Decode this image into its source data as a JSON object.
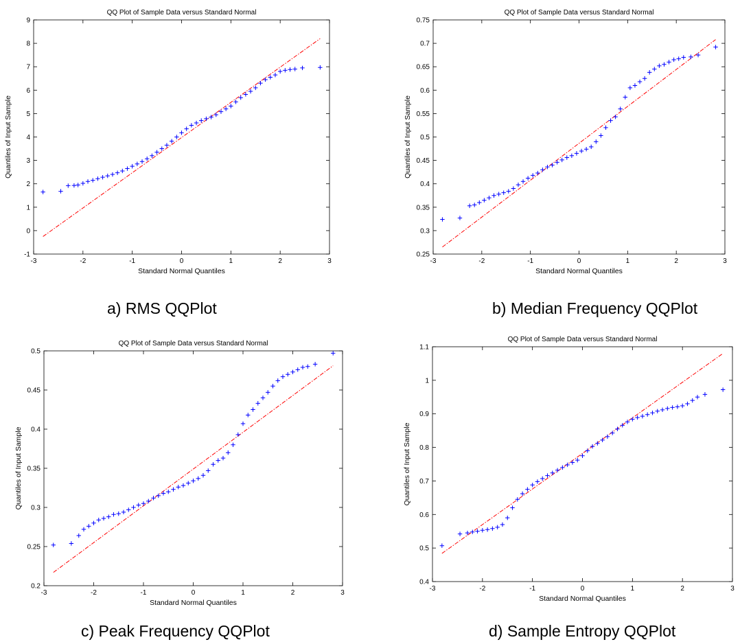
{
  "chart_data": [
    {
      "type": "scatter",
      "title": "QQ Plot of Sample Data versus Standard Normal",
      "xlabel": "Standard Normal Quantiles",
      "ylabel": "Quantiles of Input Sample",
      "caption": "a) RMS QQPlot",
      "xlim": [
        -3,
        3
      ],
      "ylim": [
        -1,
        9
      ],
      "xticks": [
        -3,
        -2,
        -1,
        0,
        1,
        2,
        3
      ],
      "yticks": [
        -1,
        0,
        1,
        2,
        3,
        4,
        5,
        6,
        7,
        8,
        9
      ],
      "marker_color": "#0000ff",
      "line_color": "#ff0000",
      "reference_line": [
        [
          -2.81,
          -0.25
        ],
        [
          2.81,
          8.2
        ]
      ],
      "points": [
        [
          -2.81,
          1.65
        ],
        [
          -2.45,
          1.68
        ],
        [
          -2.3,
          1.92
        ],
        [
          -2.18,
          1.93
        ],
        [
          -2.1,
          1.95
        ],
        [
          -2.0,
          2.02
        ],
        [
          -1.9,
          2.1
        ],
        [
          -1.8,
          2.15
        ],
        [
          -1.7,
          2.22
        ],
        [
          -1.6,
          2.28
        ],
        [
          -1.5,
          2.34
        ],
        [
          -1.4,
          2.4
        ],
        [
          -1.3,
          2.47
        ],
        [
          -1.2,
          2.55
        ],
        [
          -1.1,
          2.65
        ],
        [
          -1.0,
          2.75
        ],
        [
          -0.9,
          2.85
        ],
        [
          -0.8,
          2.95
        ],
        [
          -0.7,
          3.07
        ],
        [
          -0.6,
          3.2
        ],
        [
          -0.5,
          3.35
        ],
        [
          -0.4,
          3.5
        ],
        [
          -0.3,
          3.65
        ],
        [
          -0.2,
          3.82
        ],
        [
          -0.1,
          4.0
        ],
        [
          0.0,
          4.18
        ],
        [
          0.1,
          4.35
        ],
        [
          0.2,
          4.5
        ],
        [
          0.3,
          4.6
        ],
        [
          0.4,
          4.7
        ],
        [
          0.5,
          4.78
        ],
        [
          0.6,
          4.85
        ],
        [
          0.7,
          4.95
        ],
        [
          0.8,
          5.08
        ],
        [
          0.9,
          5.2
        ],
        [
          1.0,
          5.32
        ],
        [
          1.1,
          5.5
        ],
        [
          1.2,
          5.68
        ],
        [
          1.3,
          5.82
        ],
        [
          1.4,
          5.95
        ],
        [
          1.5,
          6.1
        ],
        [
          1.6,
          6.3
        ],
        [
          1.7,
          6.45
        ],
        [
          1.8,
          6.55
        ],
        [
          1.9,
          6.65
        ],
        [
          2.0,
          6.8
        ],
        [
          2.1,
          6.85
        ],
        [
          2.2,
          6.88
        ],
        [
          2.3,
          6.9
        ],
        [
          2.45,
          6.95
        ],
        [
          2.81,
          6.97
        ]
      ]
    },
    {
      "type": "scatter",
      "title": "QQ Plot of Sample Data versus Standard Normal",
      "xlabel": "Standard Normal Quantiles",
      "ylabel": "Quantiles of Input Sample",
      "caption": "b) Median Frequency QQPlot",
      "xlim": [
        -3,
        3
      ],
      "ylim": [
        0.25,
        0.75
      ],
      "xticks": [
        -3,
        -2,
        -1,
        0,
        1,
        2,
        3
      ],
      "yticks": [
        0.25,
        0.3,
        0.35,
        0.4,
        0.45,
        0.5,
        0.55,
        0.6,
        0.65,
        0.7,
        0.75
      ],
      "marker_color": "#0000ff",
      "line_color": "#ff0000",
      "reference_line": [
        [
          -2.81,
          0.265
        ],
        [
          2.81,
          0.708
        ]
      ],
      "points": [
        [
          -2.81,
          0.324
        ],
        [
          -2.45,
          0.327
        ],
        [
          -2.25,
          0.353
        ],
        [
          -2.15,
          0.355
        ],
        [
          -2.05,
          0.36
        ],
        [
          -1.95,
          0.365
        ],
        [
          -1.85,
          0.37
        ],
        [
          -1.75,
          0.375
        ],
        [
          -1.65,
          0.378
        ],
        [
          -1.55,
          0.381
        ],
        [
          -1.45,
          0.384
        ],
        [
          -1.35,
          0.39
        ],
        [
          -1.25,
          0.398
        ],
        [
          -1.15,
          0.405
        ],
        [
          -1.05,
          0.412
        ],
        [
          -0.95,
          0.418
        ],
        [
          -0.85,
          0.423
        ],
        [
          -0.75,
          0.43
        ],
        [
          -0.65,
          0.436
        ],
        [
          -0.55,
          0.44
        ],
        [
          -0.45,
          0.446
        ],
        [
          -0.35,
          0.451
        ],
        [
          -0.25,
          0.456
        ],
        [
          -0.15,
          0.46
        ],
        [
          -0.05,
          0.465
        ],
        [
          0.05,
          0.47
        ],
        [
          0.15,
          0.474
        ],
        [
          0.25,
          0.479
        ],
        [
          0.35,
          0.49
        ],
        [
          0.45,
          0.503
        ],
        [
          0.55,
          0.52
        ],
        [
          0.65,
          0.535
        ],
        [
          0.75,
          0.543
        ],
        [
          0.85,
          0.56
        ],
        [
          0.95,
          0.585
        ],
        [
          1.05,
          0.605
        ],
        [
          1.15,
          0.61
        ],
        [
          1.25,
          0.618
        ],
        [
          1.35,
          0.625
        ],
        [
          1.45,
          0.638
        ],
        [
          1.55,
          0.645
        ],
        [
          1.65,
          0.652
        ],
        [
          1.75,
          0.655
        ],
        [
          1.85,
          0.66
        ],
        [
          1.95,
          0.665
        ],
        [
          2.05,
          0.667
        ],
        [
          2.15,
          0.67
        ],
        [
          2.3,
          0.671
        ],
        [
          2.45,
          0.675
        ],
        [
          2.81,
          0.692
        ]
      ]
    },
    {
      "type": "scatter",
      "title": "QQ Plot of Sample Data versus Standard Normal",
      "xlabel": "Standard Normal Quantiles",
      "ylabel": "Quantiles of Input Sample",
      "caption": "c) Peak Frequency QQPlot",
      "xlim": [
        -3,
        3
      ],
      "ylim": [
        0.2,
        0.5
      ],
      "xticks": [
        -3,
        -2,
        -1,
        0,
        1,
        2,
        3
      ],
      "yticks": [
        0.2,
        0.25,
        0.3,
        0.35,
        0.4,
        0.45,
        0.5
      ],
      "marker_color": "#0000ff",
      "line_color": "#ff0000",
      "reference_line": [
        [
          -2.81,
          0.217
        ],
        [
          2.81,
          0.481
        ]
      ],
      "points": [
        [
          -2.81,
          0.252
        ],
        [
          -2.45,
          0.254
        ],
        [
          -2.3,
          0.264
        ],
        [
          -2.2,
          0.272
        ],
        [
          -2.1,
          0.276
        ],
        [
          -2.0,
          0.28
        ],
        [
          -1.9,
          0.284
        ],
        [
          -1.8,
          0.286
        ],
        [
          -1.7,
          0.288
        ],
        [
          -1.6,
          0.291
        ],
        [
          -1.5,
          0.292
        ],
        [
          -1.4,
          0.294
        ],
        [
          -1.3,
          0.297
        ],
        [
          -1.2,
          0.3
        ],
        [
          -1.1,
          0.303
        ],
        [
          -1.0,
          0.305
        ],
        [
          -0.9,
          0.308
        ],
        [
          -0.8,
          0.312
        ],
        [
          -0.7,
          0.315
        ],
        [
          -0.6,
          0.318
        ],
        [
          -0.5,
          0.32
        ],
        [
          -0.4,
          0.323
        ],
        [
          -0.3,
          0.326
        ],
        [
          -0.2,
          0.328
        ],
        [
          -0.1,
          0.331
        ],
        [
          0.0,
          0.334
        ],
        [
          0.1,
          0.337
        ],
        [
          0.2,
          0.341
        ],
        [
          0.3,
          0.347
        ],
        [
          0.4,
          0.355
        ],
        [
          0.5,
          0.36
        ],
        [
          0.6,
          0.363
        ],
        [
          0.7,
          0.37
        ],
        [
          0.8,
          0.38
        ],
        [
          0.9,
          0.393
        ],
        [
          1.0,
          0.407
        ],
        [
          1.1,
          0.418
        ],
        [
          1.2,
          0.425
        ],
        [
          1.3,
          0.433
        ],
        [
          1.4,
          0.44
        ],
        [
          1.5,
          0.447
        ],
        [
          1.6,
          0.455
        ],
        [
          1.7,
          0.462
        ],
        [
          1.8,
          0.467
        ],
        [
          1.9,
          0.47
        ],
        [
          2.0,
          0.473
        ],
        [
          2.1,
          0.476
        ],
        [
          2.2,
          0.479
        ],
        [
          2.3,
          0.48
        ],
        [
          2.45,
          0.483
        ],
        [
          2.81,
          0.497
        ]
      ]
    },
    {
      "type": "scatter",
      "title": "QQ Plot of Sample Data versus Standard Normal",
      "xlabel": "Standard Normal Quantiles",
      "ylabel": "Quantiles of Input Sample",
      "caption": "d) Sample Entropy QQPlot",
      "xlim": [
        -3,
        3
      ],
      "ylim": [
        0.4,
        1.1
      ],
      "xticks": [
        -3,
        -2,
        -1,
        0,
        1,
        2,
        3
      ],
      "yticks": [
        0.4,
        0.5,
        0.6,
        0.7,
        0.8,
        0.9,
        1,
        1.1
      ],
      "marker_color": "#0000ff",
      "line_color": "#ff0000",
      "reference_line": [
        [
          -2.81,
          0.484
        ],
        [
          2.81,
          1.08
        ]
      ],
      "points": [
        [
          -2.81,
          0.507
        ],
        [
          -2.45,
          0.542
        ],
        [
          -2.3,
          0.545
        ],
        [
          -2.2,
          0.548
        ],
        [
          -2.1,
          0.55
        ],
        [
          -2.0,
          0.553
        ],
        [
          -1.9,
          0.555
        ],
        [
          -1.8,
          0.558
        ],
        [
          -1.7,
          0.562
        ],
        [
          -1.6,
          0.57
        ],
        [
          -1.5,
          0.59
        ],
        [
          -1.4,
          0.62
        ],
        [
          -1.3,
          0.645
        ],
        [
          -1.2,
          0.662
        ],
        [
          -1.1,
          0.675
        ],
        [
          -1.0,
          0.688
        ],
        [
          -0.9,
          0.698
        ],
        [
          -0.8,
          0.707
        ],
        [
          -0.7,
          0.716
        ],
        [
          -0.6,
          0.724
        ],
        [
          -0.5,
          0.732
        ],
        [
          -0.4,
          0.74
        ],
        [
          -0.3,
          0.748
        ],
        [
          -0.2,
          0.755
        ],
        [
          -0.1,
          0.762
        ],
        [
          0.0,
          0.775
        ],
        [
          0.1,
          0.79
        ],
        [
          0.2,
          0.803
        ],
        [
          0.3,
          0.812
        ],
        [
          0.4,
          0.822
        ],
        [
          0.5,
          0.832
        ],
        [
          0.6,
          0.843
        ],
        [
          0.7,
          0.855
        ],
        [
          0.8,
          0.866
        ],
        [
          0.9,
          0.876
        ],
        [
          1.0,
          0.884
        ],
        [
          1.1,
          0.889
        ],
        [
          1.2,
          0.893
        ],
        [
          1.3,
          0.898
        ],
        [
          1.4,
          0.903
        ],
        [
          1.5,
          0.908
        ],
        [
          1.6,
          0.912
        ],
        [
          1.7,
          0.916
        ],
        [
          1.8,
          0.919
        ],
        [
          1.9,
          0.921
        ],
        [
          2.0,
          0.924
        ],
        [
          2.1,
          0.93
        ],
        [
          2.2,
          0.94
        ],
        [
          2.3,
          0.95
        ],
        [
          2.45,
          0.958
        ],
        [
          2.81,
          0.972
        ]
      ]
    }
  ]
}
